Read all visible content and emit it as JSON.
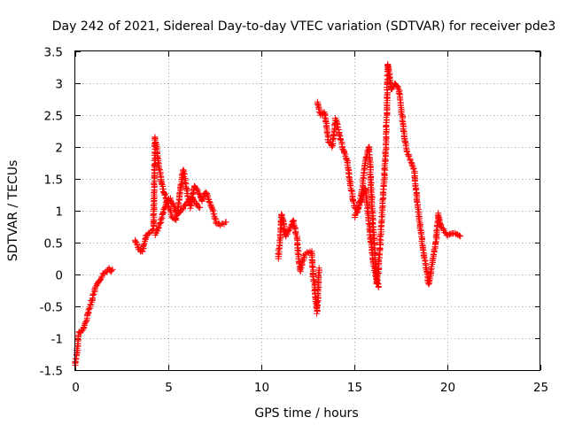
{
  "chart_data": {
    "type": "scatter",
    "title": "Day 242 of 2021, Sidereal Day-to-day VTEC variation (SDTVAR) for receiver pde3",
    "xlabel": "GPS time / hours",
    "ylabel": "SDTVAR / TECUs",
    "xlim": [
      0,
      25
    ],
    "ylim": [
      -1.5,
      3.5
    ],
    "grid": true,
    "marker": "plus",
    "color": "#ff0000",
    "x_ticks": [
      "0",
      "5",
      "10",
      "15",
      "20",
      "25"
    ],
    "y_ticks": [
      "-1.5",
      "-1",
      "-0.5",
      "0",
      "0.5",
      "1",
      "1.5",
      "2",
      "2.5",
      "3",
      "3.5"
    ],
    "x_tick_values": [
      0,
      5,
      10,
      15,
      20,
      25
    ],
    "y_tick_values": [
      -1.5,
      -1,
      -0.5,
      0,
      0.5,
      1,
      1.5,
      2,
      2.5,
      3,
      3.5
    ],
    "segments": [
      {
        "name": "seg1",
        "x": [
          0,
          0.1,
          0.2,
          0.3,
          0.5,
          0.7,
          0.9,
          1.1,
          1.3,
          1.5,
          1.7,
          1.8,
          1.9,
          2.0
        ],
        "y": [
          -1.42,
          -1.2,
          -0.9,
          -0.92,
          -0.8,
          -0.6,
          -0.4,
          -0.2,
          -0.1,
          0.0,
          0.05,
          0.1,
          0.05,
          0.08
        ]
      },
      {
        "name": "seg2",
        "x": [
          3.2,
          3.4,
          3.6,
          3.8,
          4.0,
          4.2,
          4.3,
          4.45,
          4.6,
          4.8,
          5.0,
          5.2,
          5.4,
          5.6,
          5.8,
          6.0,
          6.2,
          6.4,
          6.6,
          6.8,
          7.0,
          7.2,
          7.4,
          7.6,
          7.8,
          8.0,
          8.1
        ],
        "y": [
          0.55,
          0.4,
          0.35,
          0.6,
          0.65,
          0.7,
          2.15,
          1.8,
          1.5,
          1.25,
          1.1,
          0.9,
          0.85,
          1.2,
          1.65,
          1.3,
          1.05,
          1.4,
          1.3,
          1.15,
          1.3,
          1.15,
          1.0,
          0.8,
          0.78,
          0.8,
          0.82
        ]
      },
      {
        "name": "seg2b",
        "x": [
          4.3,
          4.5,
          4.7,
          4.9,
          5.1,
          5.3,
          5.5,
          5.7,
          5.9,
          6.1,
          6.3,
          6.5,
          6.7
        ],
        "y": [
          0.62,
          0.75,
          0.95,
          1.15,
          1.2,
          1.05,
          0.95,
          1.0,
          1.1,
          1.15,
          1.2,
          1.1,
          1.05
        ]
      },
      {
        "name": "seg3",
        "x": [
          10.9,
          11.0,
          11.1,
          11.3,
          11.5,
          11.7,
          11.9,
          12.0,
          12.1,
          12.3,
          12.5,
          12.7,
          12.8,
          13.0,
          13.1
        ],
        "y": [
          0.25,
          0.55,
          0.95,
          0.6,
          0.7,
          0.85,
          0.6,
          0.3,
          0.05,
          0.3,
          0.35,
          0.35,
          -0.05,
          -0.6,
          0.1
        ]
      },
      {
        "name": "seg4",
        "x": [
          13.0,
          13.2,
          13.4,
          13.6,
          13.8,
          14.0,
          14.2,
          14.4,
          14.6,
          14.8,
          15.0,
          15.2,
          15.4,
          15.6,
          15.8,
          16.0,
          16.2,
          16.3,
          16.5,
          16.7,
          16.8,
          17.0,
          17.2,
          17.4,
          17.6,
          17.8,
          18.0,
          18.2,
          18.4,
          18.6,
          18.8,
          19.0,
          19.2,
          19.4,
          19.5,
          19.6,
          19.8,
          20.0,
          20.2,
          20.4,
          20.7
        ],
        "y": [
          2.7,
          2.5,
          2.55,
          2.1,
          2.0,
          2.45,
          2.2,
          1.95,
          1.8,
          1.4,
          1.05,
          1.0,
          1.3,
          1.8,
          2.0,
          0.8,
          -0.15,
          0.1,
          1.0,
          2.0,
          3.3,
          2.9,
          3.0,
          2.9,
          2.4,
          1.95,
          1.8,
          1.65,
          1.1,
          0.6,
          0.2,
          -0.15,
          0.2,
          0.55,
          0.95,
          0.8,
          0.7,
          0.6,
          0.65,
          0.65,
          0.6
        ]
      },
      {
        "name": "seg4b",
        "x": [
          15.0,
          15.3,
          15.6,
          16.0,
          16.3
        ],
        "y": [
          0.9,
          1.1,
          1.35,
          0.2,
          -0.2
        ]
      }
    ]
  }
}
